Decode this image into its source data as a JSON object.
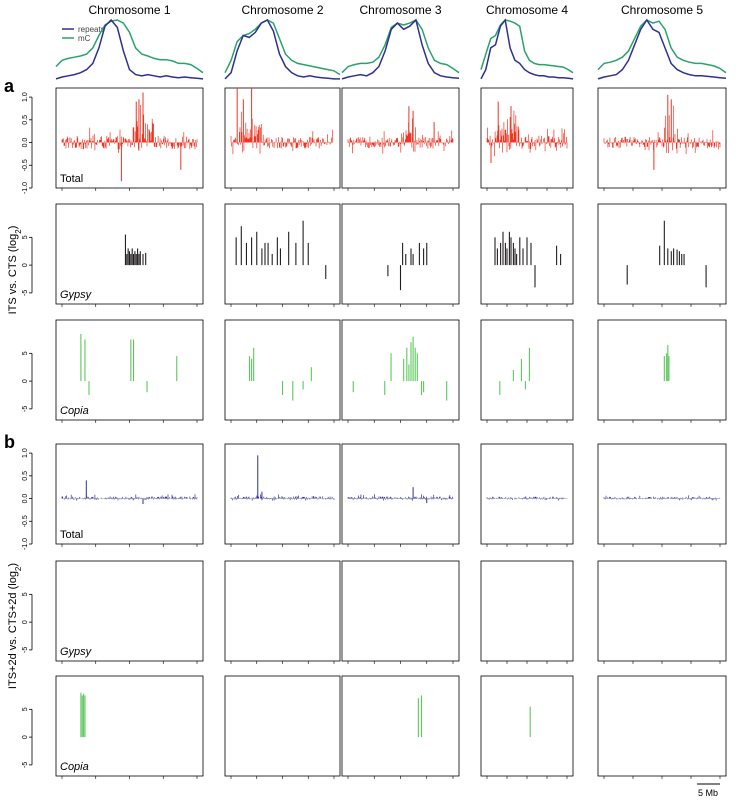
{
  "colors": {
    "repeats": "#2e3192",
    "mC": "#2aa36a",
    "total_a": "#ee3524",
    "gypsy": "#231f20",
    "copia": "#5cc85c",
    "total_b": "#2e3192",
    "axis": "#000000"
  },
  "chart_data": {
    "type": "bar",
    "columns": [
      "Chromosome 1",
      "Chromosome 2",
      "Chromosome 3",
      "Chromosome 4",
      "Chromosome 5"
    ],
    "density_legend": [
      "repeats",
      "mC"
    ],
    "scale_bar_label": "5 Mb",
    "sections": [
      {
        "label": "a",
        "ylabel": "ITS vs. CTS (log2)",
        "rows": [
          {
            "name": "Total",
            "kind": "dense",
            "color": "total_a",
            "ylim": [
              -1,
              1.2
            ],
            "yticks": [
              "-1.0",
              "-0.5",
              "0.0",
              "0.5",
              "1.0"
            ]
          },
          {
            "name": "Gypsy",
            "kind": "sparse",
            "color": "gypsy",
            "ylim": [
              -7,
              11
            ],
            "yticks": [
              "-5",
              "0",
              "5"
            ]
          },
          {
            "name": "Copia",
            "kind": "sparse",
            "color": "copia",
            "ylim": [
              -7,
              11
            ],
            "yticks": [
              "-5",
              "0",
              "5"
            ]
          }
        ]
      },
      {
        "label": "b",
        "ylabel": "ITS+2d vs. CTS+2d (log2)",
        "rows": [
          {
            "name": "Total",
            "kind": "dense",
            "color": "total_b",
            "ylim": [
              -1,
              1.2
            ],
            "yticks": [
              "-1.0",
              "-0.5",
              "0.0",
              "0.5",
              "1.0"
            ]
          },
          {
            "name": "Gypsy",
            "kind": "sparse",
            "color": "gypsy",
            "ylim": [
              -7,
              11
            ],
            "yticks": [
              "-5",
              "0",
              "5"
            ]
          },
          {
            "name": "Copia",
            "kind": "sparse",
            "color": "copia",
            "ylim": [
              -7,
              11
            ],
            "yticks": [
              "-5",
              "0",
              "5"
            ]
          }
        ]
      }
    ],
    "chromosome_length_mb": [
      30.4,
      19.7,
      23.5,
      18.6,
      27.0
    ],
    "density": {
      "repeats": [
        [
          0.05,
          0.08,
          0.1,
          0.12,
          0.15,
          0.2,
          0.3,
          0.55,
          0.9,
          1.0,
          0.88,
          0.5,
          0.2,
          0.12,
          0.1,
          0.12,
          0.1,
          0.08,
          0.1,
          0.08,
          0.07,
          0.08,
          0.07,
          0.06,
          0.05
        ],
        [
          0.05,
          0.15,
          0.5,
          0.75,
          0.72,
          0.8,
          0.95,
          1.0,
          0.82,
          0.45,
          0.25,
          0.15,
          0.1,
          0.08,
          0.1,
          0.08,
          0.07,
          0.06,
          0.05,
          0.05
        ],
        [
          0.05,
          0.08,
          0.1,
          0.12,
          0.1,
          0.15,
          0.25,
          0.5,
          0.85,
          0.95,
          0.85,
          0.9,
          1.0,
          0.6,
          0.3,
          0.15,
          0.1,
          0.08,
          0.07,
          0.06
        ],
        [
          0.05,
          0.2,
          0.55,
          0.6,
          0.9,
          1.0,
          0.55,
          0.35,
          0.3,
          0.2,
          0.15,
          0.12,
          0.1,
          0.1,
          0.08,
          0.08,
          0.07,
          0.07,
          0.06,
          0.05
        ],
        [
          0.05,
          0.08,
          0.1,
          0.12,
          0.2,
          0.35,
          0.6,
          0.85,
          1.0,
          0.85,
          0.8,
          0.55,
          0.3,
          0.2,
          0.15,
          0.12,
          0.1,
          0.1,
          0.09,
          0.08,
          0.07,
          0.06
        ]
      ],
      "mC": [
        [
          0.25,
          0.35,
          0.38,
          0.4,
          0.42,
          0.45,
          0.55,
          0.75,
          0.92,
          0.98,
          1.0,
          0.95,
          0.8,
          0.55,
          0.45,
          0.42,
          0.38,
          0.36,
          0.36,
          0.34,
          0.3,
          0.3,
          0.28,
          0.22,
          0.15
        ],
        [
          0.15,
          0.35,
          0.65,
          0.75,
          0.78,
          0.85,
          0.95,
          1.0,
          0.95,
          0.7,
          0.45,
          0.35,
          0.3,
          0.28,
          0.26,
          0.24,
          0.22,
          0.2,
          0.18,
          0.12
        ],
        [
          0.15,
          0.25,
          0.28,
          0.3,
          0.3,
          0.32,
          0.4,
          0.6,
          0.88,
          0.95,
          0.92,
          0.95,
          1.0,
          0.85,
          0.55,
          0.35,
          0.3,
          0.28,
          0.22,
          0.15
        ],
        [
          0.2,
          0.45,
          0.7,
          0.75,
          0.92,
          1.0,
          0.98,
          0.95,
          0.9,
          0.5,
          0.35,
          0.3,
          0.28,
          0.28,
          0.27,
          0.26,
          0.25,
          0.24,
          0.2,
          0.15
        ],
        [
          0.2,
          0.3,
          0.32,
          0.35,
          0.4,
          0.5,
          0.7,
          0.9,
          1.0,
          0.95,
          0.98,
          0.85,
          0.55,
          0.4,
          0.35,
          0.32,
          0.3,
          0.3,
          0.28,
          0.26,
          0.22,
          0.15
        ]
      ]
    },
    "total_a": [
      {
        "noise": 0.15,
        "pericentromere": [
          0.52,
          0.68
        ],
        "peak": 0.85,
        "spikes": [
          [
            0.6,
            1.1
          ],
          [
            0.57,
            0.95
          ],
          [
            0.55,
            0.9
          ],
          [
            0.44,
            -0.85
          ],
          [
            0.88,
            -0.6
          ]
        ]
      },
      {
        "noise": 0.13,
        "pericentromere": [
          0.08,
          0.32
        ],
        "peak": 0.75,
        "spikes": [
          [
            0.06,
            1.2
          ],
          [
            0.2,
            1.2
          ],
          [
            0.12,
            0.95
          ]
        ]
      },
      {
        "noise": 0.12,
        "pericentromere": [
          0.55,
          0.65
        ],
        "peak": 0.6,
        "spikes": [
          [
            0.58,
            0.8
          ],
          [
            0.62,
            0.7
          ],
          [
            0.82,
            0.45
          ]
        ]
      },
      {
        "noise": 0.15,
        "pericentromere": [
          0.1,
          0.4
        ],
        "peak": 0.75,
        "spikes": [
          [
            0.14,
            0.9
          ],
          [
            0.3,
            0.8
          ],
          [
            0.05,
            -0.45
          ]
        ]
      },
      {
        "noise": 0.13,
        "pericentromere": [
          0.52,
          0.64
        ],
        "peak": 0.9,
        "spikes": [
          [
            0.55,
            1.05
          ],
          [
            0.58,
            0.95
          ],
          [
            0.43,
            -0.6
          ]
        ]
      }
    ],
    "total_b": [
      {
        "noise": 0.045,
        "spikes": [
          [
            0.18,
            0.4
          ],
          [
            0.6,
            -0.12
          ]
        ]
      },
      {
        "noise": 0.045,
        "spikes": [
          [
            0.26,
            0.95
          ],
          [
            0.3,
            0.15
          ]
        ]
      },
      {
        "noise": 0.045,
        "spikes": [
          [
            0.62,
            0.25
          ],
          [
            0.75,
            -0.1
          ]
        ]
      },
      {
        "noise": 0.04,
        "spikes": []
      },
      {
        "noise": 0.04,
        "spikes": []
      }
    ],
    "gypsy_a": [
      [
        [
          0.47,
          5.5
        ],
        [
          0.48,
          2
        ],
        [
          0.49,
          3
        ],
        [
          0.5,
          2.5
        ],
        [
          0.51,
          2
        ],
        [
          0.52,
          3
        ],
        [
          0.53,
          2
        ],
        [
          0.54,
          2.5
        ],
        [
          0.55,
          2
        ],
        [
          0.56,
          3
        ],
        [
          0.57,
          2
        ],
        [
          0.58,
          2.5
        ],
        [
          0.6,
          2
        ],
        [
          0.62,
          2.2
        ]
      ],
      [
        [
          0.05,
          5
        ],
        [
          0.1,
          7
        ],
        [
          0.15,
          4
        ],
        [
          0.2,
          5
        ],
        [
          0.25,
          6
        ],
        [
          0.3,
          3
        ],
        [
          0.33,
          4
        ],
        [
          0.36,
          4
        ],
        [
          0.4,
          2
        ],
        [
          0.45,
          5
        ],
        [
          0.48,
          3
        ],
        [
          0.56,
          6
        ],
        [
          0.63,
          4
        ],
        [
          0.7,
          8
        ],
        [
          0.75,
          4
        ],
        [
          0.92,
          -2.5
        ]
      ],
      [
        [
          0.38,
          -2
        ],
        [
          0.5,
          -4.5
        ],
        [
          0.52,
          4
        ],
        [
          0.55,
          2
        ],
        [
          0.6,
          3
        ],
        [
          0.62,
          2
        ],
        [
          0.68,
          4
        ],
        [
          0.72,
          3
        ],
        [
          0.75,
          4
        ]
      ],
      [
        [
          0.1,
          5
        ],
        [
          0.13,
          3
        ],
        [
          0.17,
          4
        ],
        [
          0.2,
          6
        ],
        [
          0.23,
          4
        ],
        [
          0.25,
          3
        ],
        [
          0.28,
          6
        ],
        [
          0.3,
          5
        ],
        [
          0.33,
          4
        ],
        [
          0.35,
          3
        ],
        [
          0.37,
          2
        ],
        [
          0.41,
          5
        ],
        [
          0.45,
          3
        ],
        [
          0.5,
          5
        ],
        [
          0.55,
          4
        ],
        [
          0.6,
          -4
        ],
        [
          0.87,
          3.5
        ],
        [
          0.92,
          2
        ]
      ],
      [
        [
          0.2,
          -3.5
        ],
        [
          0.48,
          3.5
        ],
        [
          0.52,
          8
        ],
        [
          0.55,
          3
        ],
        [
          0.58,
          2.5
        ],
        [
          0.6,
          3
        ],
        [
          0.63,
          2.8
        ],
        [
          0.65,
          2.5
        ],
        [
          0.67,
          2
        ],
        [
          0.69,
          2
        ],
        [
          0.88,
          -4
        ]
      ]
    ],
    "copia_a": [
      [
        [
          0.14,
          8.5
        ],
        [
          0.17,
          7.5
        ],
        [
          0.2,
          -2.5
        ],
        [
          0.51,
          7.5
        ],
        [
          0.53,
          7.5
        ],
        [
          0.63,
          -2
        ],
        [
          0.85,
          4.5
        ]
      ],
      [
        [
          0.18,
          4.5
        ],
        [
          0.2,
          4
        ],
        [
          0.22,
          6
        ],
        [
          0.5,
          -2.5
        ],
        [
          0.6,
          -3.5
        ],
        [
          0.7,
          -1.5
        ],
        [
          0.78,
          2.5
        ]
      ],
      [
        [
          0.05,
          -2
        ],
        [
          0.35,
          -2.5
        ],
        [
          0.41,
          5
        ],
        [
          0.53,
          4
        ],
        [
          0.56,
          6
        ],
        [
          0.58,
          3
        ],
        [
          0.6,
          7
        ],
        [
          0.62,
          8
        ],
        [
          0.64,
          6
        ],
        [
          0.66,
          5
        ],
        [
          0.7,
          -2.5
        ],
        [
          0.72,
          -2
        ],
        [
          0.94,
          -3.5
        ]
      ],
      [
        [
          0.16,
          -2.5
        ],
        [
          0.33,
          2
        ],
        [
          0.43,
          4
        ],
        [
          0.48,
          -1.5
        ],
        [
          0.53,
          6
        ]
      ],
      [
        [
          0.52,
          4.5
        ],
        [
          0.54,
          5
        ],
        [
          0.55,
          6.5
        ],
        [
          0.56,
          4.5
        ]
      ]
    ],
    "gypsy_b": [
      [],
      [],
      [],
      [],
      []
    ],
    "copia_b": [
      [
        [
          0.14,
          8
        ],
        [
          0.15,
          7.5
        ],
        [
          0.16,
          7.8
        ],
        [
          0.17,
          7.5
        ]
      ],
      [],
      [
        [
          0.67,
          7
        ],
        [
          0.7,
          7.5
        ]
      ],
      [
        [
          0.54,
          5.5
        ]
      ],
      []
    ]
  }
}
